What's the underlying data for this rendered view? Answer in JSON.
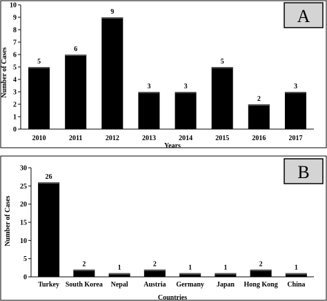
{
  "chart_data": [
    {
      "type": "bar",
      "panel_label": "A",
      "categories": [
        "2010",
        "2011",
        "2012",
        "2013",
        "2014",
        "2015",
        "2016",
        "2017"
      ],
      "values": [
        5,
        6,
        9,
        3,
        3,
        5,
        2,
        3
      ],
      "data_labels": [
        "5",
        "6",
        "9",
        "3",
        "3",
        "5",
        "2",
        "3"
      ],
      "title": "",
      "xlabel": "Years",
      "ylabel": "Number of Cases",
      "ylim": [
        0,
        10
      ],
      "yticks": [
        0,
        1,
        2,
        3,
        4,
        5,
        6,
        7,
        8,
        9,
        10
      ],
      "grid": false,
      "bar_color": "#000000"
    },
    {
      "type": "bar",
      "panel_label": "B",
      "categories": [
        "Turkey",
        "South Korea",
        "Nepal",
        "Austria",
        "Germany",
        "Japan",
        "Hong Kong",
        "China"
      ],
      "values": [
        26,
        2,
        1,
        2,
        1,
        1,
        2,
        1
      ],
      "data_labels": [
        "26",
        "2",
        "1",
        "2",
        "1",
        "1",
        "2",
        "1"
      ],
      "title": "",
      "xlabel": "Countries",
      "ylabel": "Number of Cases",
      "ylim": [
        0,
        30
      ],
      "yticks": [
        0,
        5,
        10,
        15,
        20,
        25,
        30
      ],
      "grid": false,
      "bar_color": "#000000"
    }
  ]
}
